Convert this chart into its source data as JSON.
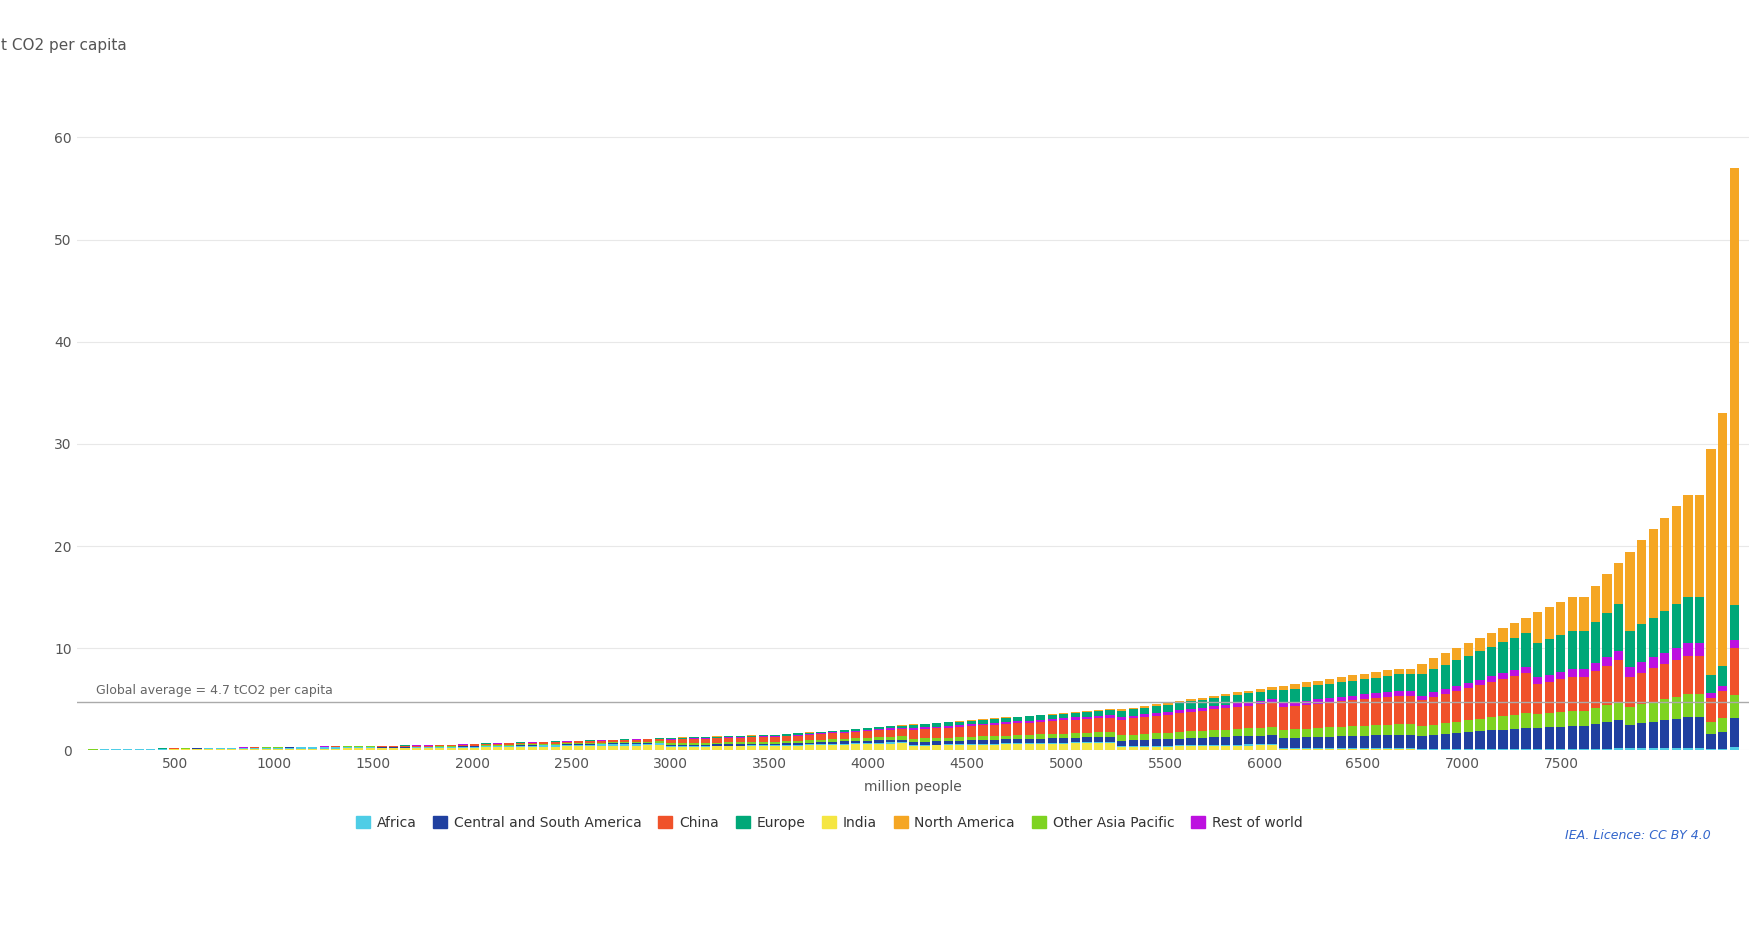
{
  "ylabel": "t CO2 per capita",
  "xlabel": "million people",
  "global_average": 4.7,
  "global_average_label": "Global average = 4.7 tCO2 per capita",
  "ylim": [
    0,
    65
  ],
  "yticks": [
    0,
    10,
    20,
    30,
    40,
    50,
    60
  ],
  "xlim_left": 0,
  "xlim_right": 8450,
  "xticks": [
    500,
    1000,
    1500,
    2000,
    2500,
    3000,
    3500,
    4000,
    4500,
    5000,
    5500,
    6000,
    6500,
    7000,
    7500
  ],
  "background_color": "#ffffff",
  "grid_color": "#e8e8e8",
  "iea_credit": "IEA. Licence: CC BY 4.0",
  "regions": [
    "Africa",
    "Central and South America",
    "China",
    "Europe",
    "India",
    "North America",
    "Other Asia Pacific",
    "Rest of world"
  ],
  "region_colors": {
    "Africa": "#4ecde6",
    "Central and South America": "#2040a0",
    "China": "#f0522a",
    "Europe": "#00a878",
    "India": "#f5e642",
    "North America": "#f5a623",
    "Other Asia Pacific": "#7ed321",
    "Rest of world": "#bd10e0"
  },
  "legend_marker_size": 10
}
